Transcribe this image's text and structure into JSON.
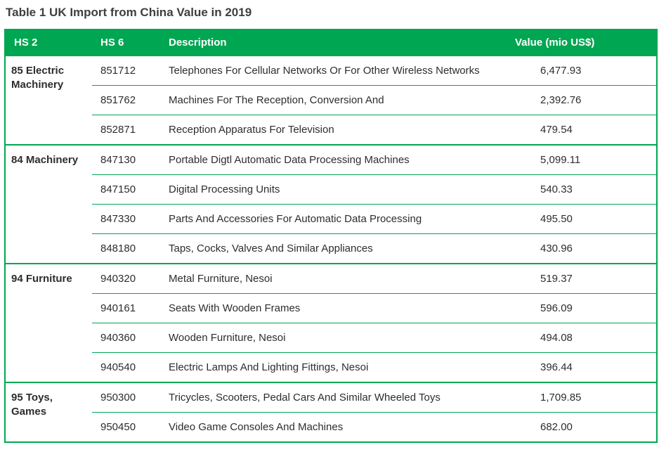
{
  "page": {
    "title": "Table 1 UK Import from China Value in 2019"
  },
  "colors": {
    "green": "#00a651",
    "title_text": "#3f3f3f",
    "body_text": "#2d2d2d",
    "header_text": "#ffffff"
  },
  "table": {
    "columns": [
      "HS 2",
      "HS 6",
      "Description",
      "Value (mio US$)"
    ],
    "groups": [
      {
        "hs2": "85 Electric Machinery",
        "rows": [
          {
            "hs6": "851712",
            "description": "Telephones For Cellular Networks Or For Other Wireless Networks",
            "value": "6,477.93"
          },
          {
            "hs6": "851762",
            "description": "Machines For The Reception, Conversion And",
            "value": "2,392.76"
          },
          {
            "hs6": "852871",
            "description": "Reception Apparatus For Television",
            "value": "479.54"
          }
        ]
      },
      {
        "hs2": "84 Machinery",
        "rows": [
          {
            "hs6": "847130",
            "description": "Portable Digtl Automatic Data Processing Machines",
            "value": "5,099.11"
          },
          {
            "hs6": "847150",
            "description": "Digital Processing Units",
            "value": "540.33"
          },
          {
            "hs6": "847330",
            "description": "Parts And Accessories For Automatic Data Processing",
            "value": "495.50"
          },
          {
            "hs6": "848180",
            "description": "Taps, Cocks, Valves And Similar Appliances",
            "value": "430.96"
          }
        ]
      },
      {
        "hs2": "94 Furniture",
        "rows": [
          {
            "hs6": "940320",
            "description": "Metal Furniture, Nesoi",
            "value": "519.37"
          },
          {
            "hs6": "940161",
            "description": "Seats With Wooden Frames",
            "value": "596.09"
          },
          {
            "hs6": "940360",
            "description": "Wooden Furniture, Nesoi",
            "value": "494.08"
          },
          {
            "hs6": "940540",
            "description": "Electric Lamps And Lighting Fittings, Nesoi",
            "value": "396.44"
          }
        ]
      },
      {
        "hs2": "95 Toys, Games",
        "rows": [
          {
            "hs6": "950300",
            "description": "Tricycles, Scooters, Pedal Cars And Similar Wheeled Toys",
            "value": "1,709.85"
          },
          {
            "hs6": "950450",
            "description": "Video Game Consoles And Machines",
            "value": "682.00"
          }
        ]
      }
    ]
  }
}
